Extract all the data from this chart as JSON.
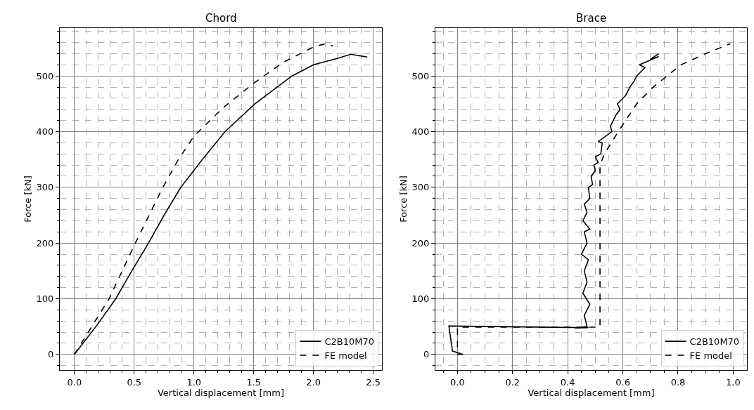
{
  "chart_data": [
    {
      "type": "line",
      "title": "Chord",
      "xlabel": "Vertical displacement [mm]",
      "ylabel": "Force [kN]",
      "xlim": [
        -0.1225,
        2.5725
      ],
      "ylim": [
        -28,
        586
      ],
      "xticks": [
        {
          "value": 0,
          "label": "0.0"
        },
        {
          "value": 0.1,
          "label": null
        },
        {
          "value": 0.2,
          "label": null
        },
        {
          "value": 0.3,
          "label": null
        },
        {
          "value": 0.4,
          "label": null
        },
        {
          "value": 0.5,
          "label": "0.5"
        },
        {
          "value": 0.6,
          "label": null
        },
        {
          "value": 0.7,
          "label": null
        },
        {
          "value": 0.8,
          "label": null
        },
        {
          "value": 0.9,
          "label": null
        },
        {
          "value": 1.0,
          "label": "1.0"
        },
        {
          "value": 1.1,
          "label": null
        },
        {
          "value": 1.2,
          "label": null
        },
        {
          "value": 1.3,
          "label": null
        },
        {
          "value": 1.4,
          "label": null
        },
        {
          "value": 1.5,
          "label": "1.5"
        },
        {
          "value": 1.6,
          "label": null
        },
        {
          "value": 1.7,
          "label": null
        },
        {
          "value": 1.8,
          "label": null
        },
        {
          "value": 1.9,
          "label": null
        },
        {
          "value": 2.0,
          "label": "2.0"
        },
        {
          "value": 2.1,
          "label": null
        },
        {
          "value": 2.2,
          "label": null
        },
        {
          "value": 2.3,
          "label": null
        },
        {
          "value": 2.4,
          "label": null
        },
        {
          "value": 2.5,
          "label": "2.5"
        }
      ],
      "yticks": [
        {
          "value": -20,
          "label": null
        },
        0,
        {
          "value": 20,
          "label": null
        },
        {
          "value": 40,
          "label": null
        },
        {
          "value": 60,
          "label": null
        },
        {
          "value": 80,
          "label": null
        },
        100,
        {
          "value": 120,
          "label": null
        },
        {
          "value": 140,
          "label": null
        },
        {
          "value": 160,
          "label": null
        },
        {
          "value": 180,
          "label": null
        },
        200,
        {
          "value": 220,
          "label": null
        },
        {
          "value": 240,
          "label": null
        },
        {
          "value": 260,
          "label": null
        },
        {
          "value": 280,
          "label": null
        },
        300,
        {
          "value": 320,
          "label": null
        },
        {
          "value": 340,
          "label": null
        },
        {
          "value": 360,
          "label": null
        },
        {
          "value": 380,
          "label": null
        },
        400,
        {
          "value": 420,
          "label": null
        },
        {
          "value": 440,
          "label": null
        },
        {
          "value": 460,
          "label": null
        },
        {
          "value": 480,
          "label": null
        },
        500,
        {
          "value": 520,
          "label": null
        },
        {
          "value": 540,
          "label": null
        },
        {
          "value": 560,
          "label": null
        },
        {
          "value": 580,
          "label": null
        }
      ],
      "grid": true,
      "legend": "bottom right",
      "series": [
        {
          "name": "C2B10M70",
          "color": "#000000",
          "line_style": "solid",
          "x": [
            0,
            0.18,
            0.346,
            0.48,
            0.62,
            0.75,
            0.89,
            1.07,
            1.26,
            1.51,
            1.82,
            2.0,
            2.21,
            2.31,
            2.45
          ],
          "values": [
            0,
            50,
            100,
            150,
            200,
            250,
            300,
            350,
            400,
            450,
            500,
            520,
            532,
            539,
            534
          ]
        },
        {
          "name": "FE model",
          "color": "#000000",
          "line_style": "dashed",
          "x": [
            0,
            0.29,
            0.51,
            0.74,
            0.87,
            1.0,
            1.25,
            1.5,
            1.75,
            2.0,
            2.1,
            2.16
          ],
          "values": [
            0,
            100,
            200,
            300,
            350,
            392,
            444,
            487,
            525,
            552,
            558,
            554
          ]
        }
      ]
    },
    {
      "type": "line",
      "title": "Brace",
      "xlabel": "Vertical displacement [mm]",
      "ylabel": "Force [kN]",
      "xlim": [
        -0.08,
        1.05
      ],
      "ylim": [
        -28,
        586
      ],
      "xticks": [
        {
          "value": -0.05,
          "label": null
        },
        {
          "value": 0,
          "label": "0.0"
        },
        {
          "value": 0.05,
          "label": null
        },
        {
          "value": 0.1,
          "label": null
        },
        {
          "value": 0.15,
          "label": null
        },
        {
          "value": 0.2,
          "label": "0.2"
        },
        {
          "value": 0.25,
          "label": null
        },
        {
          "value": 0.3,
          "label": null
        },
        {
          "value": 0.35,
          "label": null
        },
        {
          "value": 0.4,
          "label": "0.4"
        },
        {
          "value": 0.45,
          "label": null
        },
        {
          "value": 0.5,
          "label": null
        },
        {
          "value": 0.55,
          "label": null
        },
        {
          "value": 0.6,
          "label": "0.6"
        },
        {
          "value": 0.65,
          "label": null
        },
        {
          "value": 0.7,
          "label": null
        },
        {
          "value": 0.75,
          "label": null
        },
        {
          "value": 0.8,
          "label": "0.8"
        },
        {
          "value": 0.85,
          "label": null
        },
        {
          "value": 0.9,
          "label": null
        },
        {
          "value": 0.95,
          "label": null
        },
        {
          "value": 1.0,
          "label": "1.0"
        }
      ],
      "yticks": [
        {
          "value": -20,
          "label": null
        },
        0,
        {
          "value": 20,
          "label": null
        },
        {
          "value": 40,
          "label": null
        },
        {
          "value": 60,
          "label": null
        },
        {
          "value": 80,
          "label": null
        },
        100,
        {
          "value": 120,
          "label": null
        },
        {
          "value": 140,
          "label": null
        },
        {
          "value": 160,
          "label": null
        },
        {
          "value": 180,
          "label": null
        },
        200,
        {
          "value": 220,
          "label": null
        },
        {
          "value": 240,
          "label": null
        },
        {
          "value": 260,
          "label": null
        },
        {
          "value": 280,
          "label": null
        },
        300,
        {
          "value": 320,
          "label": null
        },
        {
          "value": 340,
          "label": null
        },
        {
          "value": 360,
          "label": null
        },
        {
          "value": 380,
          "label": null
        },
        400,
        {
          "value": 420,
          "label": null
        },
        {
          "value": 440,
          "label": null
        },
        {
          "value": 460,
          "label": null
        },
        {
          "value": 480,
          "label": null
        },
        500,
        {
          "value": 520,
          "label": null
        },
        {
          "value": 540,
          "label": null
        },
        {
          "value": 560,
          "label": null
        },
        {
          "value": 580,
          "label": null
        }
      ],
      "grid": true,
      "legend": "bottom right",
      "series": [
        {
          "name": "C2B10M70",
          "color": "#000000",
          "line_style": "solid",
          "x": [
            0.02,
            -0.018,
            -0.031,
            0.475,
            0.425,
            0.47,
            0.46,
            0.48,
            0.455,
            0.47,
            0.46,
            0.475,
            0.45,
            0.47,
            0.46,
            0.48,
            0.455,
            0.47,
            0.46,
            0.48,
            0.475,
            0.49,
            0.485,
            0.5,
            0.495,
            0.51,
            0.5,
            0.52,
            0.525,
            0.51,
            0.56,
            0.555,
            0.575,
            0.59,
            0.58,
            0.6,
            0.61,
            0.625,
            0.64,
            0.65,
            0.68,
            0.66,
            0.73,
            0.7,
            0.73
          ],
          "values": [
            0,
            6,
            51,
            48,
            47,
            50,
            70,
            90,
            110,
            130,
            150,
            170,
            180,
            200,
            220,
            225,
            240,
            255,
            270,
            280,
            300,
            305,
            320,
            330,
            340,
            345,
            355,
            360,
            380,
            382,
            400,
            410,
            430,
            440,
            450,
            460,
            465,
            480,
            490,
            500,
            515,
            520,
            535,
            530,
            540
          ]
        },
        {
          "name": "FE model",
          "color": "#000000",
          "line_style": "dashed",
          "x": [
            0.02,
            0,
            0,
            0.517,
            0.517,
            0.533,
            0.583,
            0.61,
            0.65,
            0.71,
            0.76,
            0.81,
            0.9,
            0.96,
            0.99
          ],
          "values": [
            0,
            0,
            49,
            49,
            340,
            360,
            400,
            420,
            450,
            480,
            500,
            520,
            540,
            552,
            558
          ]
        }
      ]
    }
  ]
}
